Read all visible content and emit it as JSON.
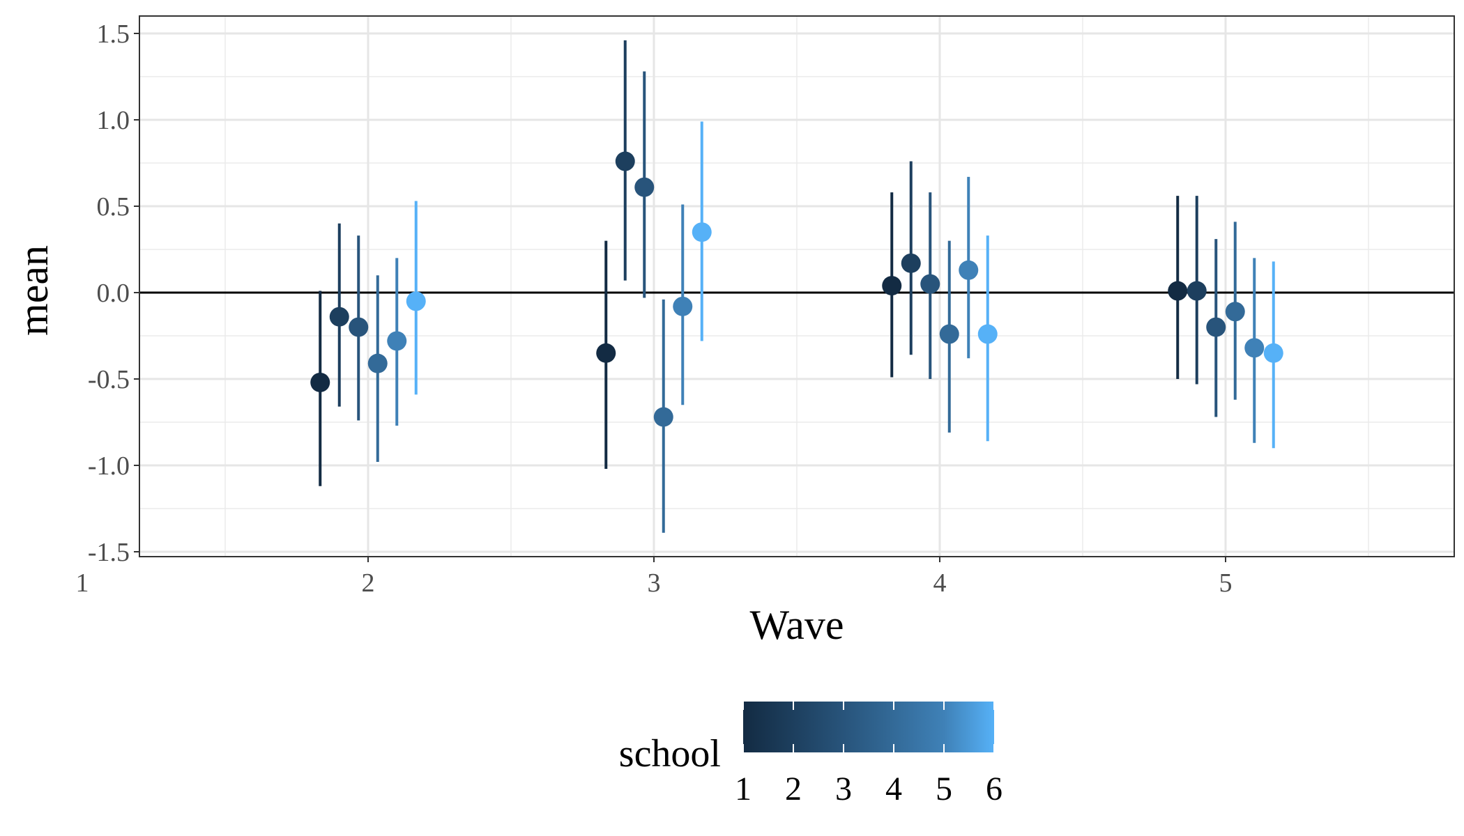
{
  "chart_data": {
    "type": "scatter",
    "subtype": "point-range (mean with interval bars)",
    "xlabel": "Wave",
    "ylabel": "mean",
    "xlim": [
      1,
      5.8
    ],
    "ylim": [
      -1.5,
      1.6
    ],
    "x_ticks": [
      "1",
      "2",
      "3",
      "4",
      "5"
    ],
    "y_ticks": [
      "-1.5",
      "-1.0",
      "-0.5",
      "0.0",
      "0.5",
      "1.0",
      "1.5"
    ],
    "reference_line_y": 0,
    "grid": true,
    "legend": {
      "title": "school",
      "placement": "bottom",
      "type": "colorbar",
      "range": [
        1,
        6
      ],
      "labels": [
        "1",
        "2",
        "3",
        "4",
        "5",
        "6"
      ],
      "low_color": "#132B43",
      "high_color": "#56B1F7"
    },
    "school_colors": [
      "#132B43",
      "#1D3F5E",
      "#28547B",
      "#336A98",
      "#3F81B7",
      "#56B1F7"
    ],
    "points": [
      {
        "wave": 2,
        "school": 1,
        "mean": -0.52,
        "lower": -1.12,
        "upper": 0.01
      },
      {
        "wave": 2,
        "school": 2,
        "mean": -0.14,
        "lower": -0.66,
        "upper": 0.4
      },
      {
        "wave": 2,
        "school": 3,
        "mean": -0.2,
        "lower": -0.74,
        "upper": 0.33
      },
      {
        "wave": 2,
        "school": 4,
        "mean": -0.41,
        "lower": -0.98,
        "upper": 0.1
      },
      {
        "wave": 2,
        "school": 5,
        "mean": -0.28,
        "lower": -0.77,
        "upper": 0.2
      },
      {
        "wave": 2,
        "school": 6,
        "mean": -0.05,
        "lower": -0.59,
        "upper": 0.53
      },
      {
        "wave": 3,
        "school": 1,
        "mean": -0.35,
        "lower": -1.02,
        "upper": 0.3
      },
      {
        "wave": 3,
        "school": 2,
        "mean": 0.76,
        "lower": 0.07,
        "upper": 1.46
      },
      {
        "wave": 3,
        "school": 3,
        "mean": 0.61,
        "lower": -0.03,
        "upper": 1.28
      },
      {
        "wave": 3,
        "school": 4,
        "mean": -0.72,
        "lower": -1.39,
        "upper": -0.04
      },
      {
        "wave": 3,
        "school": 5,
        "mean": -0.08,
        "lower": -0.65,
        "upper": 0.51
      },
      {
        "wave": 3,
        "school": 6,
        "mean": 0.35,
        "lower": -0.28,
        "upper": 0.99
      },
      {
        "wave": 4,
        "school": 1,
        "mean": 0.04,
        "lower": -0.49,
        "upper": 0.58
      },
      {
        "wave": 4,
        "school": 2,
        "mean": 0.17,
        "lower": -0.36,
        "upper": 0.76
      },
      {
        "wave": 4,
        "school": 3,
        "mean": 0.05,
        "lower": -0.5,
        "upper": 0.58
      },
      {
        "wave": 4,
        "school": 4,
        "mean": -0.24,
        "lower": -0.81,
        "upper": 0.3
      },
      {
        "wave": 4,
        "school": 5,
        "mean": 0.13,
        "lower": -0.38,
        "upper": 0.67
      },
      {
        "wave": 4,
        "school": 6,
        "mean": -0.24,
        "lower": -0.86,
        "upper": 0.33
      },
      {
        "wave": 5,
        "school": 1,
        "mean": 0.01,
        "lower": -0.5,
        "upper": 0.56
      },
      {
        "wave": 5,
        "school": 2,
        "mean": 0.01,
        "lower": -0.53,
        "upper": 0.56
      },
      {
        "wave": 5,
        "school": 3,
        "mean": -0.2,
        "lower": -0.72,
        "upper": 0.31
      },
      {
        "wave": 5,
        "school": 4,
        "mean": -0.11,
        "lower": -0.62,
        "upper": 0.41
      },
      {
        "wave": 5,
        "school": 5,
        "mean": -0.32,
        "lower": -0.87,
        "upper": 0.2
      },
      {
        "wave": 5,
        "school": 6,
        "mean": -0.35,
        "lower": -0.9,
        "upper": 0.18
      }
    ]
  }
}
